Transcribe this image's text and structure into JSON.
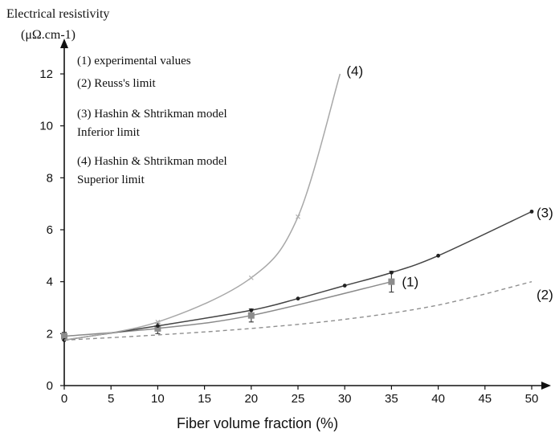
{
  "chart_data": {
    "type": "line",
    "ylabel": "Electrical resistivity",
    "yunit": "(μΩ.cm-1)",
    "xlabel": "Fiber volume fraction (%)",
    "xlim": [
      0,
      50
    ],
    "ylim": [
      0,
      12
    ],
    "x_ticks": [
      0,
      5,
      10,
      15,
      20,
      25,
      30,
      35,
      40,
      45,
      50
    ],
    "y_ticks": [
      0,
      2,
      4,
      6,
      8,
      10,
      12
    ],
    "grid": false,
    "legend_position": "top-left",
    "legend": [
      [
        "(1) experimental values"
      ],
      [
        "(2) Reuss's limit"
      ],
      [
        "(3) Hashin & Shtrikman model",
        "Inferior limit"
      ],
      [
        "(4) Hashin & Shtrikman model",
        "Superior limit"
      ]
    ],
    "series": [
      {
        "label": "(1)",
        "style": "solid",
        "color": "#8a8a8a",
        "marker": "square",
        "error_bars": true,
        "x": [
          0,
          10,
          20,
          35
        ],
        "y": [
          1.9,
          2.2,
          2.7,
          4.0
        ],
        "err": [
          0.15,
          0.2,
          0.25,
          0.4
        ]
      },
      {
        "label": "(2)",
        "style": "dashed",
        "color": "#8f8f8f",
        "marker": "none",
        "x": [
          0,
          10,
          20,
          30,
          40,
          50
        ],
        "y": [
          1.75,
          1.95,
          2.2,
          2.55,
          3.1,
          4.0
        ]
      },
      {
        "label": "(3)",
        "style": "solid",
        "color": "#444444",
        "marker": "dot",
        "x": [
          0,
          10,
          20,
          25,
          30,
          35,
          40,
          50
        ],
        "y": [
          1.75,
          2.3,
          2.9,
          3.35,
          3.85,
          4.35,
          5.0,
          6.7
        ]
      },
      {
        "label": "(4)",
        "style": "solid",
        "color": "#a8a8a8",
        "marker": "x",
        "x": [
          0,
          10,
          20,
          25,
          29.5
        ],
        "y": [
          1.75,
          2.45,
          4.15,
          6.5,
          12.0
        ]
      }
    ]
  }
}
